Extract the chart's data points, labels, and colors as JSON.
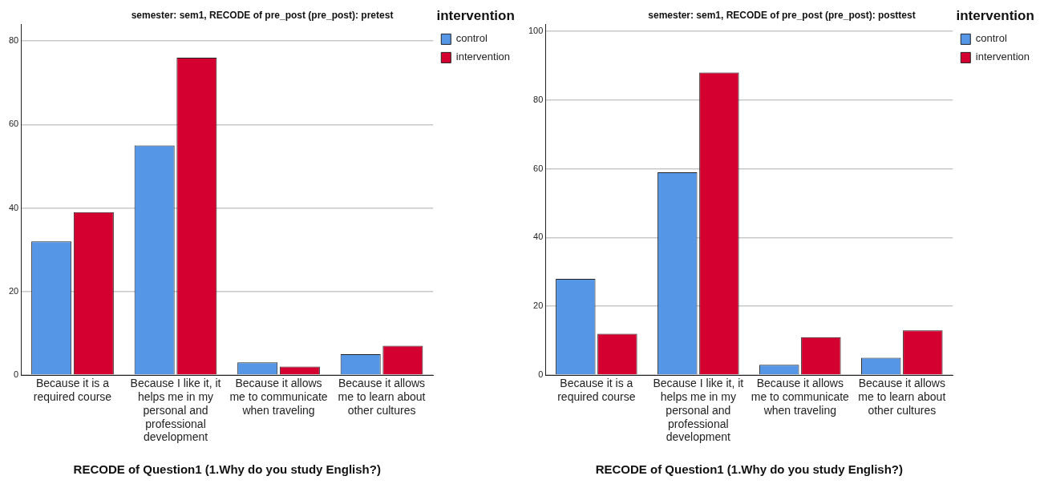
{
  "chart_data": [
    {
      "type": "bar",
      "title": "semester: sem1, RECODE of pre_post (pre_post): pretest",
      "xlabel": "RECODE of Question1 (1.Why do you study English?)",
      "legend_title": "intervention",
      "legend": "top right",
      "grid": "y",
      "categories": [
        "Because it is a required course",
        "Because I like it, it helps me in my personal and professional development",
        "Because it allows me to communicate when traveling",
        "Because it allows me to learn about other cultures"
      ],
      "series": [
        {
          "name": "control",
          "color": "#5596e6",
          "values": [
            32,
            55,
            3,
            5
          ]
        },
        {
          "name": "intervention",
          "color": "#d40030",
          "values": [
            39,
            76,
            2,
            7
          ]
        }
      ],
      "ylim": [
        0,
        84
      ],
      "yticks": [
        0,
        20,
        40,
        60,
        80
      ]
    },
    {
      "type": "bar",
      "title": "semester: sem1, RECODE of pre_post (pre_post): posttest",
      "xlabel": "RECODE of Question1 (1.Why do you study English?)",
      "legend_title": "intervention",
      "legend": "top right",
      "grid": "y",
      "categories": [
        "Because it is a required course",
        "Because I like it, it helps me in my personal and professional development",
        "Because it allows me to communicate when traveling",
        "Because it allows me to learn about other cultures"
      ],
      "series": [
        {
          "name": "control",
          "color": "#5596e6",
          "values": [
            28,
            59,
            3,
            5
          ]
        },
        {
          "name": "intervention",
          "color": "#d40030",
          "values": [
            12,
            88,
            11,
            13
          ]
        }
      ],
      "ylim": [
        0,
        102
      ],
      "yticks": [
        0,
        20,
        40,
        60,
        80,
        100
      ]
    }
  ]
}
